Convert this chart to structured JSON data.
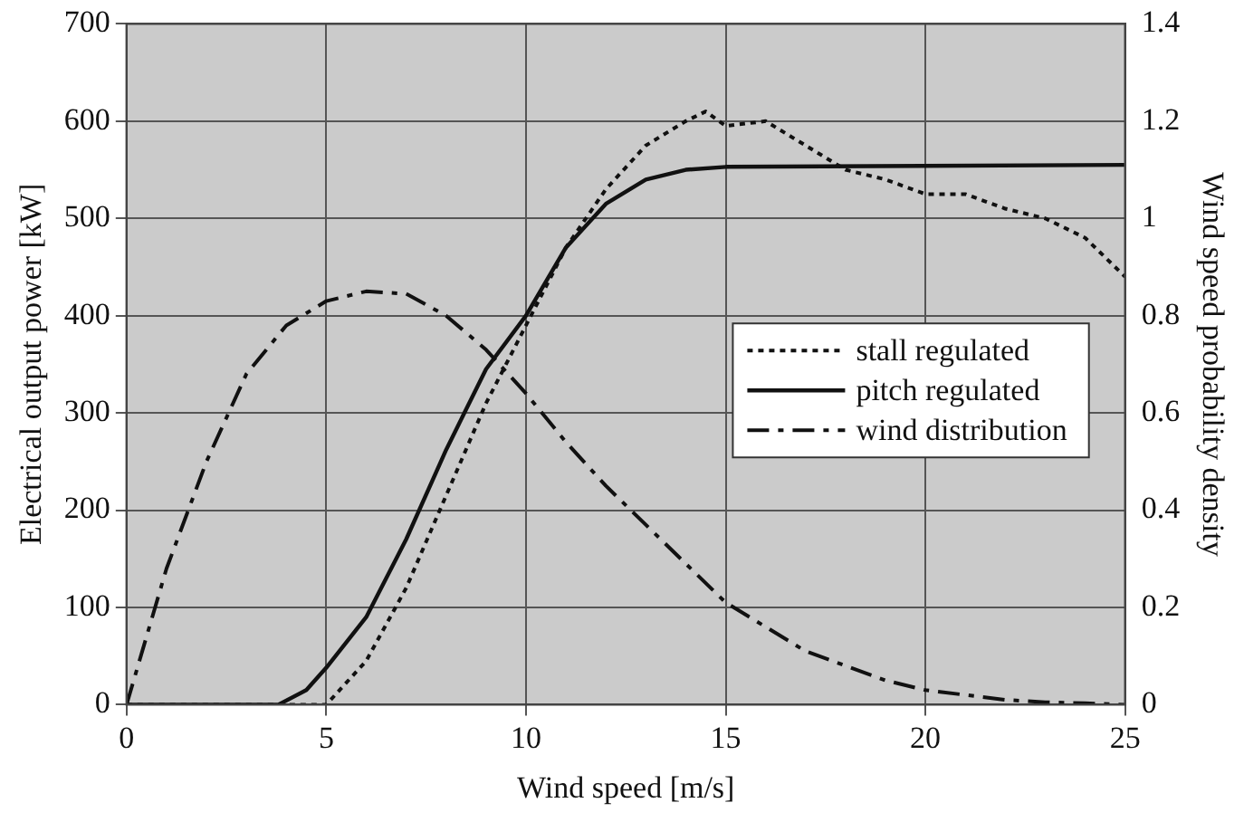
{
  "chart_data": {
    "type": "line",
    "xlabel": "Wind speed [m/s]",
    "ylabel": "Electrical output power [kW]",
    "y2label": "Wind speed probability density",
    "xlim": [
      0,
      25
    ],
    "xticks": [
      0,
      5,
      10,
      15,
      20,
      25
    ],
    "ylim": [
      0,
      700
    ],
    "yticks": [
      0,
      100,
      200,
      300,
      400,
      500,
      600,
      700
    ],
    "y2lim": [
      0,
      1.4
    ],
    "y2ticks": [
      0,
      0.2,
      0.4,
      0.6,
      0.8,
      1,
      1.2,
      1.4
    ],
    "grid": true,
    "legend": "right",
    "marker": "none",
    "series": [
      {
        "name": "stall regulated",
        "color": "#111111",
        "line_style": "dotted",
        "x": [
          0,
          5,
          6,
          7,
          8,
          9,
          10,
          11,
          12,
          13,
          14,
          14.5,
          15,
          16,
          17,
          18,
          19,
          20,
          21,
          22,
          23,
          24,
          25
        ],
        "values": [
          0,
          0,
          45,
          120,
          215,
          310,
          390,
          470,
          530,
          575,
          600,
          610,
          595,
          600,
          575,
          550,
          540,
          525,
          525,
          510,
          500,
          480,
          440
        ]
      },
      {
        "name": "pitch regulated",
        "color": "#111111",
        "line_style": "solid",
        "x": [
          0,
          3.8,
          4.5,
          5,
          6,
          7,
          8,
          9,
          10,
          11,
          12,
          13,
          14,
          15,
          25
        ],
        "values": [
          0,
          0,
          15,
          38,
          90,
          170,
          262,
          345,
          400,
          470,
          515,
          540,
          550,
          553,
          555
        ]
      },
      {
        "name": "wind distribution",
        "color": "#111111",
        "line_style": "dashed",
        "axis": "y2",
        "x": [
          0,
          1,
          2,
          3,
          4,
          5,
          6,
          7,
          8,
          9,
          10,
          11,
          12,
          13,
          14,
          15,
          16,
          17,
          18,
          19,
          20,
          21,
          22,
          23,
          24,
          25
        ],
        "values": [
          0,
          0.28,
          0.5,
          0.68,
          0.78,
          0.83,
          0.85,
          0.845,
          0.8,
          0.73,
          0.64,
          0.54,
          0.45,
          0.37,
          0.29,
          0.21,
          0.16,
          0.11,
          0.08,
          0.05,
          0.03,
          0.02,
          0.01,
          0.005,
          0.003,
          0
        ]
      }
    ]
  }
}
